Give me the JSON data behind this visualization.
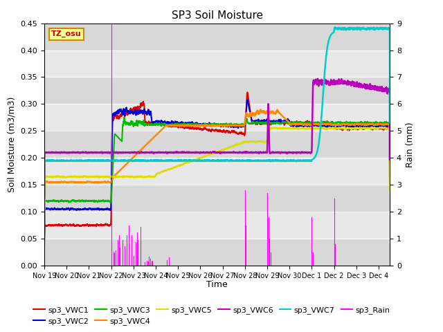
{
  "title": "SP3 Soil Moisture",
  "xlabel": "Time",
  "ylabel_left": "Soil Moisture (m3/m3)",
  "ylabel_right": "Rain (mm)",
  "ylim_left": [
    0.0,
    0.45
  ],
  "ylim_right": [
    0.0,
    9.0
  ],
  "yticks_left": [
    0.0,
    0.05,
    0.1,
    0.15,
    0.2,
    0.25,
    0.3,
    0.35,
    0.4,
    0.45
  ],
  "yticks_right": [
    0.0,
    1.0,
    2.0,
    3.0,
    4.0,
    5.0,
    6.0,
    7.0,
    8.0,
    9.0
  ],
  "xlim": [
    0,
    15.5
  ],
  "xtick_positions": [
    0,
    1,
    2,
    3,
    4,
    5,
    6,
    7,
    8,
    9,
    10,
    11,
    12,
    13,
    14,
    15
  ],
  "xtick_labels": [
    "Nov 19",
    "Nov 20",
    "Nov 21",
    "Nov 22",
    "Nov 23",
    "Nov 24",
    "Nov 25",
    "Nov 26",
    "Nov 27",
    "Nov 28",
    "Nov 29",
    "Nov 30",
    "Dec 1",
    "Dec 2",
    "Dec 3",
    "Dec 4"
  ],
  "annotation_text": "TZ_osu",
  "annotation_color": "#cc0000",
  "annotation_bg": "#ffff99",
  "annotation_border": "#cc8800",
  "colors": {
    "sp3_VWC1": "#dd0000",
    "sp3_VWC2": "#0000dd",
    "sp3_VWC3": "#00bb00",
    "sp3_VWC4": "#ff8800",
    "sp3_VWC5": "#dddd00",
    "sp3_VWC6": "#bb00bb",
    "sp3_VWC7": "#00cccc",
    "sp3_Rain": "#ff00ff"
  },
  "band_colors": [
    "#d8d8d8",
    "#e8e8e8"
  ],
  "band_edges": [
    0.0,
    0.05,
    0.1,
    0.15,
    0.2,
    0.25,
    0.3,
    0.35,
    0.4,
    0.45
  ]
}
